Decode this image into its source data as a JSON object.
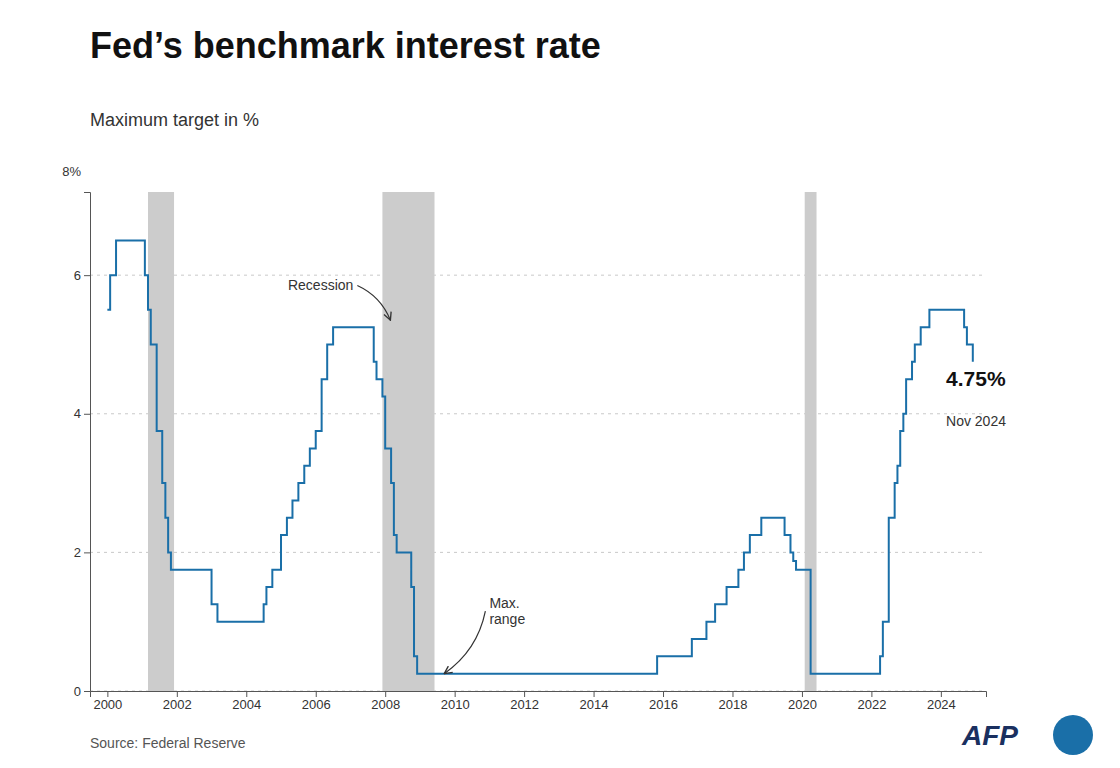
{
  "chart_data": {
    "type": "step",
    "title": "Fed’s benchmark interest rate",
    "subtitle": "Maximum target in %",
    "source": "Source: Federal Reserve",
    "logo": "AFP",
    "color": "#1a6fa8",
    "grid": true,
    "recession_color": "#cccccc",
    "recession_bands": [
      [
        2001.17,
        2001.92
      ],
      [
        2007.92,
        2009.42
      ],
      [
        2020.08,
        2020.42
      ]
    ],
    "x": [
      2000.0,
      2000.08,
      2000.25,
      2000.5,
      2000.75,
      2001.0,
      2001.08,
      2001.17,
      2001.25,
      2001.42,
      2001.58,
      2001.67,
      2001.75,
      2001.83,
      2001.92,
      2002.0,
      2002.5,
      2002.83,
      2003.0,
      2003.17,
      2003.5,
      2004.0,
      2004.5,
      2004.58,
      2004.75,
      2005.0,
      2005.17,
      2005.33,
      2005.5,
      2005.67,
      2005.83,
      2006.0,
      2006.17,
      2006.33,
      2006.5,
      2006.67,
      2006.83,
      2007.0,
      2007.5,
      2007.67,
      2007.75,
      2007.83,
      2007.92,
      2008.0,
      2008.17,
      2008.25,
      2008.33,
      2008.5,
      2008.67,
      2008.75,
      2008.83,
      2008.92,
      2009.0,
      2009.17,
      2009.42,
      2009.5,
      2010.0,
      2011.0,
      2012.0,
      2013.0,
      2013.5,
      2014.0,
      2015.0,
      2015.83,
      2016.0,
      2016.83,
      2017.0,
      2017.25,
      2017.5,
      2017.83,
      2018.0,
      2018.17,
      2018.33,
      2018.5,
      2018.75,
      2018.83,
      2019.0,
      2019.25,
      2019.5,
      2019.67,
      2019.75,
      2019.83,
      2020.0,
      2020.08,
      2020.25,
      2020.42,
      2020.5,
      2021.0,
      2021.5,
      2022.0,
      2022.25,
      2022.33,
      2022.5,
      2022.67,
      2022.75,
      2022.83,
      2022.92,
      2023.0,
      2023.17,
      2023.25,
      2023.42,
      2023.5,
      2023.67,
      2023.75,
      2023.92,
      2024.0,
      2024.5,
      2024.67,
      2024.75,
      2024.92
    ],
    "values": [
      5.5,
      6.0,
      6.5,
      6.5,
      6.5,
      6.5,
      6.0,
      5.5,
      5.0,
      3.75,
      3.0,
      2.5,
      2.0,
      1.75,
      1.75,
      1.75,
      1.75,
      1.75,
      1.25,
      1.0,
      1.0,
      1.0,
      1.25,
      1.5,
      1.75,
      2.25,
      2.5,
      2.75,
      3.0,
      3.25,
      3.5,
      3.75,
      4.5,
      5.0,
      5.25,
      5.25,
      5.25,
      5.25,
      5.25,
      4.75,
      4.5,
      4.5,
      4.25,
      3.5,
      3.0,
      2.25,
      2.0,
      2.0,
      2.0,
      1.5,
      0.5,
      0.25,
      0.25,
      0.25,
      0.25,
      0.25,
      0.25,
      0.25,
      0.25,
      0.25,
      0.25,
      0.25,
      0.25,
      0.5,
      0.5,
      0.75,
      0.75,
      1.0,
      1.25,
      1.5,
      1.5,
      1.75,
      2.0,
      2.25,
      2.25,
      2.5,
      2.5,
      2.5,
      2.25,
      2.0,
      1.875,
      1.75,
      1.75,
      1.75,
      0.25,
      0.25,
      0.25,
      0.25,
      0.25,
      0.25,
      0.5,
      1.0,
      2.5,
      3.0,
      3.25,
      3.75,
      4.0,
      4.5,
      4.75,
      5.0,
      5.25,
      5.25,
      5.5,
      5.5,
      5.5,
      5.5,
      5.5,
      5.25,
      5.0,
      4.75
    ],
    "xlim": [
      1999.5,
      2025.3
    ],
    "ylim": [
      0,
      7.2
    ],
    "xticks": [
      2000,
      2002,
      2004,
      2006,
      2008,
      2010,
      2012,
      2014,
      2016,
      2018,
      2020,
      2022,
      2024
    ],
    "yticks": [
      0,
      2,
      4,
      6
    ],
    "annotations": [
      {
        "text": "8%"
      },
      {
        "text": "Recession",
        "x": 2005.2,
        "y": 5.85,
        "arrow_to": [
          2008.15,
          5.35
        ]
      },
      {
        "text": "Max.\nrange",
        "x": 2011.0,
        "y": 1.15,
        "arrow_to": [
          2009.7,
          0.25
        ]
      },
      {
        "text": "4.75%",
        "x": 2024.15,
        "y": 4.5,
        "weight": "bold"
      },
      {
        "text": "Nov 2024",
        "x": 2024.15,
        "y": 3.9
      }
    ]
  }
}
